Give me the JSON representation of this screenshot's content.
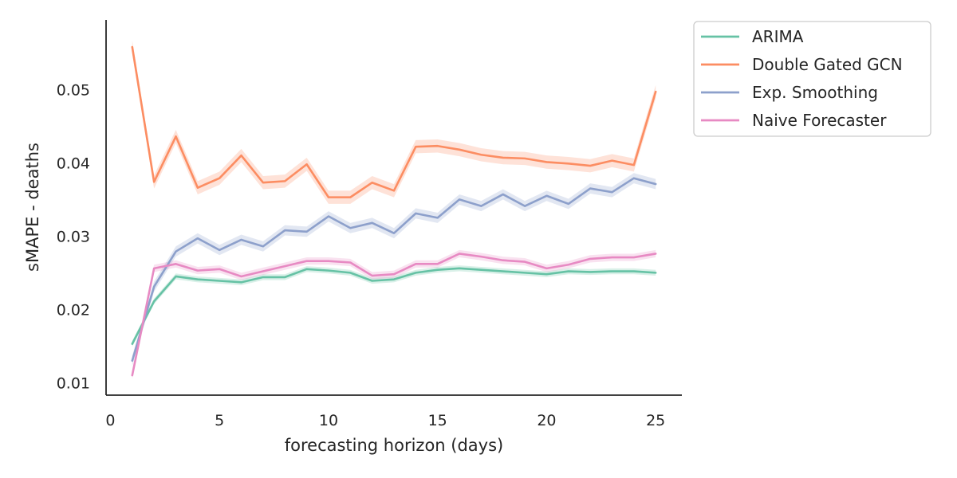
{
  "chart_data": {
    "type": "line",
    "xlabel": "forecasting horizon (days)",
    "ylabel": "sMAPE - deaths",
    "xlim": [
      -0.2,
      26.2
    ],
    "ylim": [
      0.0083,
      0.0595
    ],
    "xticks": [
      0,
      5,
      10,
      15,
      20,
      25
    ],
    "yticks": [
      0.01,
      0.02,
      0.03,
      0.04,
      0.05
    ],
    "ytick_labels": [
      "0.01",
      "0.02",
      "0.03",
      "0.04",
      "0.05"
    ],
    "grid": false,
    "legend_position": "outside-top-right",
    "x": [
      1,
      2,
      3,
      4,
      5,
      6,
      7,
      8,
      9,
      10,
      11,
      12,
      13,
      14,
      15,
      16,
      17,
      18,
      19,
      20,
      21,
      22,
      23,
      24,
      25
    ],
    "series": [
      {
        "name": "ARIMA",
        "color": "#66c2a5",
        "values": [
          0.0153,
          0.0211,
          0.0245,
          0.0241,
          0.0239,
          0.0237,
          0.0244,
          0.0244,
          0.0255,
          0.0253,
          0.025,
          0.0239,
          0.0241,
          0.025,
          0.0254,
          0.0256,
          0.0254,
          0.0252,
          0.025,
          0.0248,
          0.0252,
          0.0251,
          0.0252,
          0.0252,
          0.025
        ],
        "band": 0.0004
      },
      {
        "name": "Double Gated GCN",
        "color": "#fc8d62",
        "values": [
          0.0558,
          0.0374,
          0.0436,
          0.0366,
          0.0379,
          0.041,
          0.0373,
          0.0375,
          0.0398,
          0.0353,
          0.0353,
          0.0373,
          0.0362,
          0.0422,
          0.0423,
          0.0418,
          0.0411,
          0.0407,
          0.0406,
          0.0401,
          0.0399,
          0.0396,
          0.0403,
          0.0397,
          0.0497
        ],
        "band": 0.0009
      },
      {
        "name": "Exp. Smoothing",
        "color": "#8da0cb",
        "values": [
          0.013,
          0.0231,
          0.0279,
          0.0297,
          0.0281,
          0.0295,
          0.0286,
          0.0308,
          0.0306,
          0.0327,
          0.0311,
          0.0318,
          0.0304,
          0.0331,
          0.0325,
          0.035,
          0.0341,
          0.0357,
          0.0341,
          0.0355,
          0.0344,
          0.0365,
          0.036,
          0.0379,
          0.0371
        ],
        "band": 0.0007
      },
      {
        "name": "Naive Forecaster",
        "color": "#e78ac3",
        "values": [
          0.011,
          0.0256,
          0.0262,
          0.0253,
          0.0255,
          0.0245,
          0.0252,
          0.0259,
          0.0266,
          0.0266,
          0.0264,
          0.0246,
          0.0248,
          0.0262,
          0.0262,
          0.0276,
          0.0272,
          0.0267,
          0.0265,
          0.0256,
          0.0261,
          0.0269,
          0.0271,
          0.0271,
          0.0276
        ],
        "band": 0.0005
      }
    ]
  }
}
